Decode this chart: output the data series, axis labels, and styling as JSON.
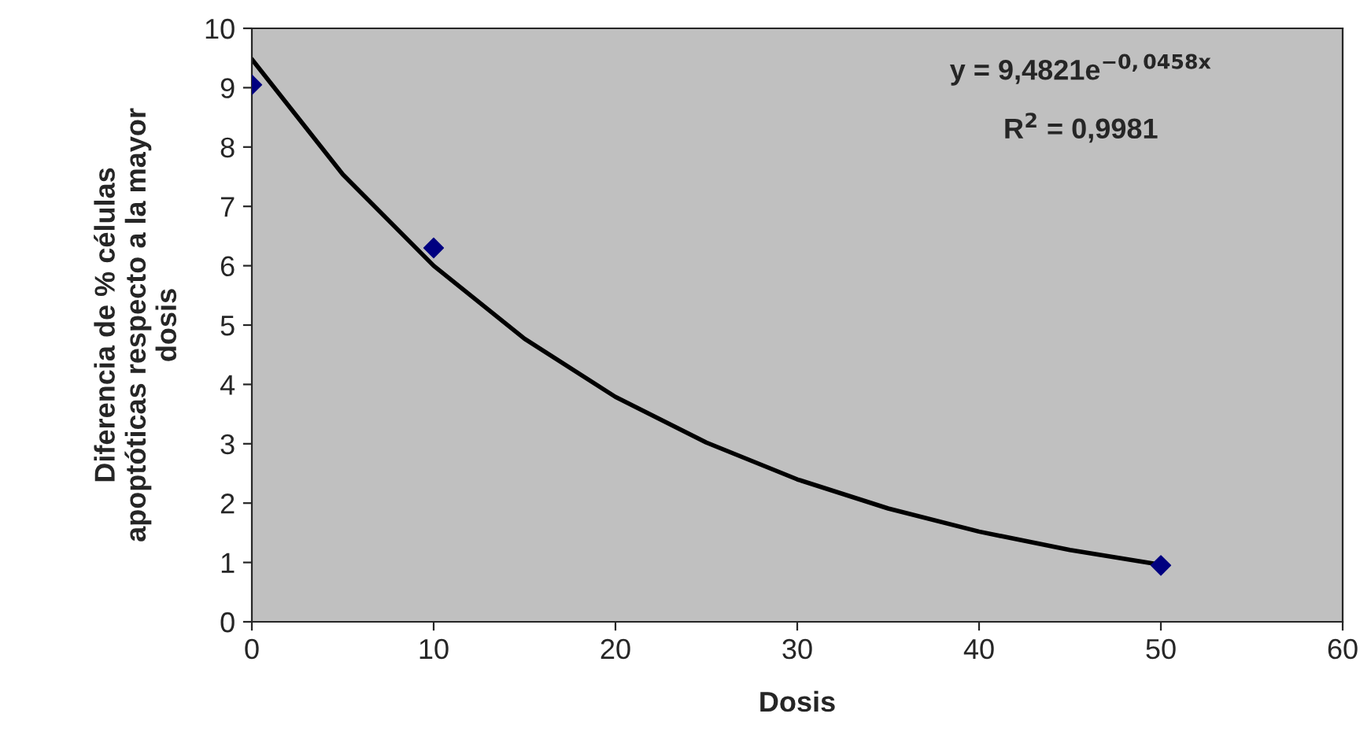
{
  "chart_data": {
    "type": "scatter",
    "xlabel": "Dosis",
    "ylabel": "Diferencia de % células\napoptóticas respecto a la mayor\ndosis",
    "xlim": [
      0,
      60
    ],
    "xticks": [
      0,
      10,
      20,
      30,
      40,
      50,
      60
    ],
    "ylim": [
      0,
      10
    ],
    "yticks": [
      0,
      1,
      2,
      3,
      4,
      5,
      6,
      7,
      8,
      9,
      10
    ],
    "grid": false,
    "legend": false,
    "marker": "diamond",
    "series": [
      {
        "color": "#000080",
        "x": [
          0,
          10,
          50
        ],
        "values": [
          9.05,
          6.3,
          0.95
        ]
      },
      {
        "type": "line",
        "color": "#000000",
        "marker": "none",
        "line_style": "solid",
        "x": [
          0,
          5,
          10,
          15,
          20,
          25,
          30,
          35,
          40,
          45,
          50
        ],
        "values": [
          9.48,
          7.54,
          6.0,
          4.77,
          3.79,
          3.02,
          2.4,
          1.91,
          1.52,
          1.21,
          0.96
        ]
      }
    ],
    "annotations": [
      "y = 9,4821e$^{−0,0458x}$",
      "R$^{2}$ = 0,9981"
    ]
  }
}
